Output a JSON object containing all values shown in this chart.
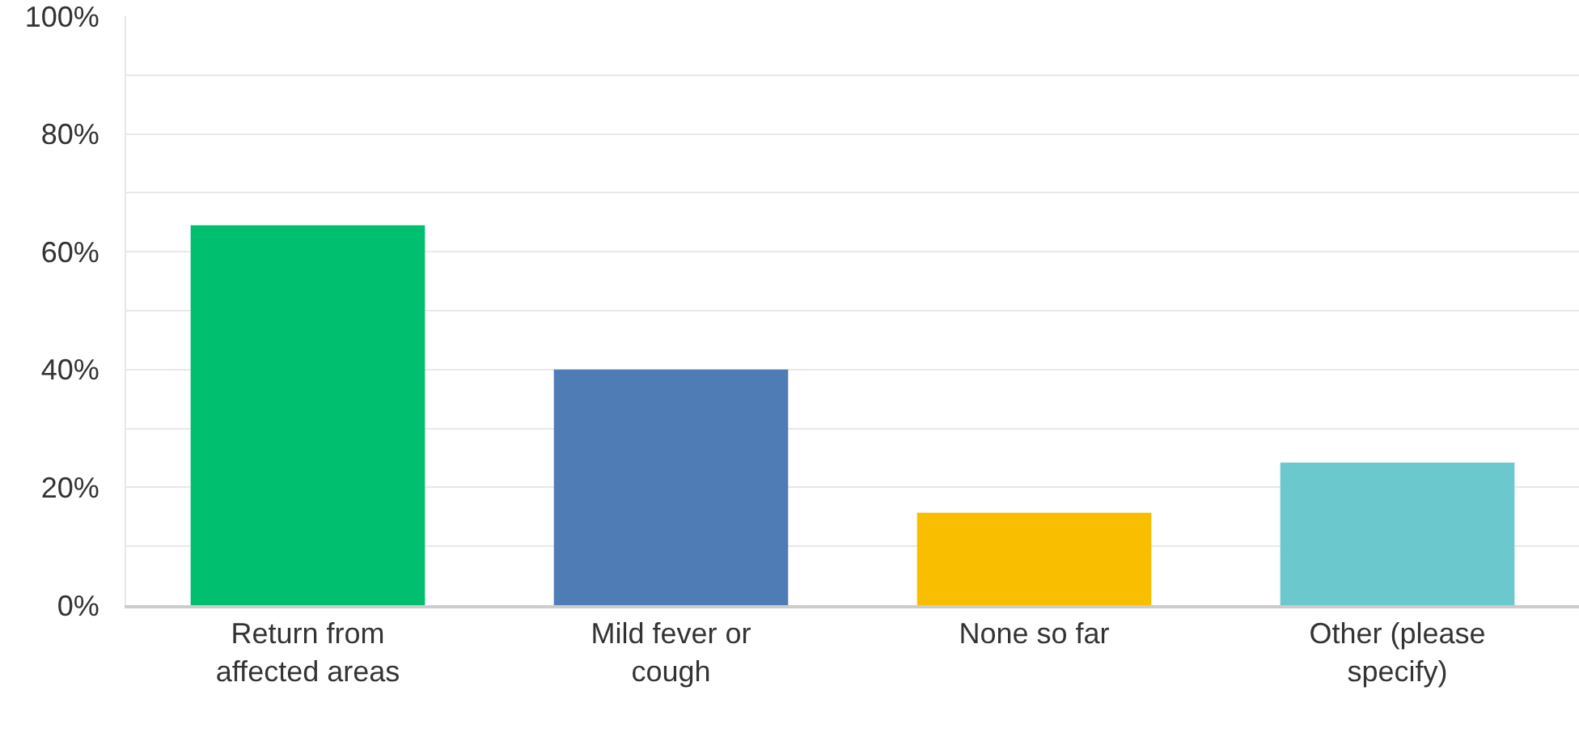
{
  "chart_data": {
    "type": "bar",
    "categories": [
      "Return from affected areas",
      "Mild fever or cough",
      "None so far",
      "Other (please specify)"
    ],
    "values": [
      64.5,
      40,
      15.7,
      24.2
    ],
    "colors": [
      "#00bf6f",
      "#507cb6",
      "#f9be00",
      "#6bc8cd"
    ],
    "ylim": [
      0,
      100
    ],
    "yticks": [
      {
        "value": 0,
        "label": "0%"
      },
      {
        "value": 10,
        "label": null
      },
      {
        "value": 20,
        "label": "20%"
      },
      {
        "value": 30,
        "label": null
      },
      {
        "value": 40,
        "label": "40%"
      },
      {
        "value": 50,
        "label": null
      },
      {
        "value": 60,
        "label": "60%"
      },
      {
        "value": 70,
        "label": null
      },
      {
        "value": 80,
        "label": "80%"
      },
      {
        "value": 90,
        "label": null
      },
      {
        "value": 100,
        "label": "100%"
      }
    ],
    "grid": "y"
  }
}
